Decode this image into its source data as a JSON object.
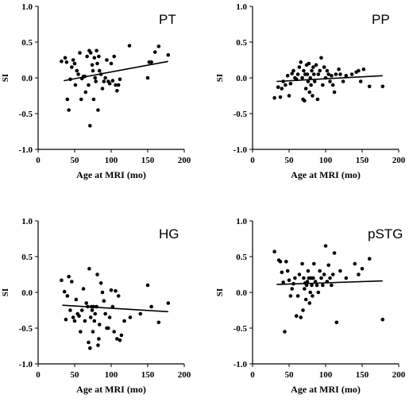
{
  "chart_data": [
    {
      "type": "scatter",
      "title": "PT",
      "xlabel": "Age at MRI (mo)",
      "ylabel": "SI",
      "xlim": [
        0,
        200
      ],
      "ylim": [
        -1.0,
        1.0
      ],
      "xticks": [
        "0",
        "50",
        "100",
        "150",
        "200"
      ],
      "yticks": [
        "1.0",
        "0.5",
        "0.0",
        "-0.5",
        "-1.0"
      ],
      "trend": {
        "x": [
          35,
          178
        ],
        "y": [
          -0.04,
          0.23
        ]
      },
      "points": [
        [
          32,
          0.23
        ],
        [
          37,
          0.28
        ],
        [
          39,
          0.22
        ],
        [
          40,
          -0.3
        ],
        [
          42,
          -0.45
        ],
        [
          44,
          -0.02
        ],
        [
          46,
          0.15
        ],
        [
          48,
          0.25
        ],
        [
          50,
          0.2
        ],
        [
          51,
          -0.1
        ],
        [
          53,
          0.1
        ],
        [
          55,
          0.05
        ],
        [
          57,
          0.35
        ],
        [
          59,
          -0.3
        ],
        [
          60,
          -0.01
        ],
        [
          62,
          0.02
        ],
        [
          64,
          0.02
        ],
        [
          65,
          -0.2
        ],
        [
          67,
          0.3
        ],
        [
          69,
          -0.1
        ],
        [
          70,
          0.38
        ],
        [
          71,
          -0.67
        ],
        [
          72,
          0.35
        ],
        [
          74,
          0.18
        ],
        [
          75,
          0.1
        ],
        [
          76,
          -0.3
        ],
        [
          77,
          0.28
        ],
        [
          78,
          0.0
        ],
        [
          79,
          -0.05
        ],
        [
          80,
          0.38
        ],
        [
          81,
          0.2
        ],
        [
          82,
          -0.45
        ],
        [
          83,
          0.3
        ],
        [
          84,
          0.1
        ],
        [
          86,
          0.05
        ],
        [
          88,
          -0.15
        ],
        [
          90,
          -0.05
        ],
        [
          92,
          0.0
        ],
        [
          94,
          0.25
        ],
        [
          96,
          -0.05
        ],
        [
          98,
          -0.08
        ],
        [
          100,
          0.2
        ],
        [
          102,
          -0.04
        ],
        [
          104,
          0.3
        ],
        [
          106,
          -0.1
        ],
        [
          108,
          -0.18
        ],
        [
          110,
          -0.1
        ],
        [
          112,
          -0.02
        ],
        [
          125,
          0.45
        ],
        [
          150,
          0.0
        ],
        [
          152,
          0.22
        ],
        [
          155,
          0.22
        ],
        [
          160,
          0.36
        ],
        [
          165,
          0.44
        ],
        [
          178,
          0.32
        ]
      ]
    },
    {
      "type": "scatter",
      "title": "PP",
      "xlabel": "Age at MRI (mo)",
      "ylabel": "SI",
      "xlim": [
        0,
        200
      ],
      "ylim": [
        -1.0,
        1.0
      ],
      "xticks": [
        "0",
        "50",
        "100",
        "150",
        "200"
      ],
      "yticks": [
        "1.0",
        "0.5",
        "0.0",
        "-0.5",
        "-1.0"
      ],
      "trend": {
        "x": [
          33,
          178
        ],
        "y": [
          -0.05,
          0.03
        ]
      },
      "points": [
        [
          30,
          -0.28
        ],
        [
          35,
          -0.13
        ],
        [
          38,
          -0.27
        ],
        [
          40,
          -0.15
        ],
        [
          42,
          -0.05
        ],
        [
          45,
          -0.1
        ],
        [
          48,
          0.03
        ],
        [
          50,
          -0.25
        ],
        [
          52,
          -0.08
        ],
        [
          54,
          0.06
        ],
        [
          56,
          0.1
        ],
        [
          58,
          0.0
        ],
        [
          60,
          -0.02
        ],
        [
          62,
          0.05
        ],
        [
          64,
          0.15
        ],
        [
          66,
          0.22
        ],
        [
          68,
          0.0
        ],
        [
          69,
          -0.3
        ],
        [
          70,
          0.1
        ],
        [
          71,
          -0.32
        ],
        [
          72,
          0.05
        ],
        [
          73,
          -0.15
        ],
        [
          74,
          0.18
        ],
        [
          75,
          0.05
        ],
        [
          76,
          -0.05
        ],
        [
          77,
          0.2
        ],
        [
          78,
          -0.2
        ],
        [
          79,
          0.0
        ],
        [
          80,
          -0.1
        ],
        [
          81,
          0.1
        ],
        [
          82,
          -0.25
        ],
        [
          83,
          0.15
        ],
        [
          84,
          0.05
        ],
        [
          85,
          -0.05
        ],
        [
          87,
          0.18
        ],
        [
          89,
          -0.3
        ],
        [
          90,
          0.05
        ],
        [
          92,
          0.1
        ],
        [
          94,
          0.28
        ],
        [
          96,
          -0.1
        ],
        [
          98,
          0.15
        ],
        [
          100,
          0.0
        ],
        [
          102,
          0.1
        ],
        [
          104,
          0.05
        ],
        [
          106,
          -0.05
        ],
        [
          108,
          0.03
        ],
        [
          110,
          -0.1
        ],
        [
          112,
          -0.2
        ],
        [
          114,
          0.05
        ],
        [
          118,
          0.12
        ],
        [
          120,
          0.05
        ],
        [
          124,
          -0.05
        ],
        [
          128,
          0.03
        ],
        [
          136,
          0.05
        ],
        [
          142,
          0.08
        ],
        [
          145,
          0.1
        ],
        [
          148,
          -0.05
        ],
        [
          152,
          0.12
        ],
        [
          160,
          -0.12
        ],
        [
          178,
          -0.12
        ]
      ]
    },
    {
      "type": "scatter",
      "title": "HG",
      "xlabel": "Age at MRI (mo)",
      "ylabel": "SI",
      "xlim": [
        0,
        200
      ],
      "ylim": [
        -1.0,
        1.0
      ],
      "xticks": [
        "0",
        "50",
        "100",
        "150",
        "200"
      ],
      "yticks": [
        "1.0",
        "0.5",
        "0.0",
        "-0.5",
        "-1.0"
      ],
      "trend": {
        "x": [
          33,
          178
        ],
        "y": [
          -0.18,
          -0.27
        ]
      },
      "points": [
        [
          32,
          0.17
        ],
        [
          36,
          0.01
        ],
        [
          38,
          -0.38
        ],
        [
          40,
          -0.05
        ],
        [
          42,
          0.22
        ],
        [
          44,
          -0.25
        ],
        [
          46,
          0.15
        ],
        [
          48,
          -0.35
        ],
        [
          50,
          -0.4
        ],
        [
          52,
          -0.1
        ],
        [
          54,
          -0.3
        ],
        [
          56,
          -0.33
        ],
        [
          58,
          -0.55
        ],
        [
          60,
          -0.25
        ],
        [
          62,
          0.05
        ],
        [
          64,
          -0.4
        ],
        [
          66,
          -0.15
        ],
        [
          68,
          -0.2
        ],
        [
          69,
          -0.7
        ],
        [
          70,
          0.33
        ],
        [
          71,
          -0.78
        ],
        [
          72,
          -0.35
        ],
        [
          73,
          -0.2
        ],
        [
          74,
          -0.25
        ],
        [
          75,
          -0.55
        ],
        [
          76,
          -0.2
        ],
        [
          77,
          -0.4
        ],
        [
          78,
          -0.3
        ],
        [
          80,
          -0.2
        ],
        [
          81,
          0.25
        ],
        [
          82,
          -0.74
        ],
        [
          83,
          -0.65
        ],
        [
          84,
          -0.45
        ],
        [
          86,
          0.13
        ],
        [
          88,
          0.0
        ],
        [
          90,
          -0.12
        ],
        [
          92,
          -0.3
        ],
        [
          94,
          -0.5
        ],
        [
          96,
          -0.5
        ],
        [
          98,
          -0.35
        ],
        [
          100,
          0.03
        ],
        [
          102,
          -0.2
        ],
        [
          104,
          -0.55
        ],
        [
          106,
          0.02
        ],
        [
          108,
          -0.65
        ],
        [
          110,
          -0.05
        ],
        [
          112,
          -0.67
        ],
        [
          114,
          -0.6
        ],
        [
          118,
          -0.4
        ],
        [
          126,
          -0.35
        ],
        [
          140,
          -0.3
        ],
        [
          150,
          0.1
        ],
        [
          155,
          -0.2
        ],
        [
          165,
          -0.42
        ],
        [
          178,
          -0.15
        ]
      ]
    },
    {
      "type": "scatter",
      "title": "pSTG",
      "xlabel": "Age at MRI (mo)",
      "ylabel": "SI",
      "xlim": [
        0,
        200
      ],
      "ylim": [
        -1.0,
        1.0
      ],
      "xticks": [
        "0",
        "50",
        "100",
        "150",
        "200"
      ],
      "yticks": [
        "1.0",
        "0.5",
        "0.0",
        "-0.5",
        "-1.0"
      ],
      "trend": {
        "x": [
          33,
          178
        ],
        "y": [
          0.11,
          0.16
        ]
      },
      "points": [
        [
          30,
          0.57
        ],
        [
          36,
          0.45
        ],
        [
          38,
          0.43
        ],
        [
          40,
          0.28
        ],
        [
          42,
          0.14
        ],
        [
          44,
          -0.55
        ],
        [
          46,
          0.43
        ],
        [
          48,
          0.3
        ],
        [
          50,
          0.17
        ],
        [
          52,
          -0.05
        ],
        [
          54,
          0.05
        ],
        [
          56,
          0.12
        ],
        [
          58,
          0.2
        ],
        [
          60,
          -0.33
        ],
        [
          62,
          -0.05
        ],
        [
          64,
          0.25
        ],
        [
          66,
          -0.35
        ],
        [
          68,
          0.4
        ],
        [
          69,
          -0.25
        ],
        [
          70,
          0.2
        ],
        [
          71,
          0.05
        ],
        [
          72,
          0.13
        ],
        [
          73,
          -0.1
        ],
        [
          74,
          0.1
        ],
        [
          75,
          0.15
        ],
        [
          76,
          0.3
        ],
        [
          77,
          0.2
        ],
        [
          78,
          -0.15
        ],
        [
          79,
          0.0
        ],
        [
          80,
          0.2
        ],
        [
          81,
          0.1
        ],
        [
          82,
          -0.05
        ],
        [
          83,
          0.2
        ],
        [
          84,
          0.4
        ],
        [
          86,
          0.15
        ],
        [
          88,
          0.1
        ],
        [
          90,
          0.0
        ],
        [
          92,
          0.3
        ],
        [
          94,
          0.2
        ],
        [
          96,
          0.1
        ],
        [
          98,
          0.25
        ],
        [
          100,
          0.65
        ],
        [
          102,
          0.15
        ],
        [
          104,
          0.38
        ],
        [
          106,
          0.2
        ],
        [
          108,
          0.1
        ],
        [
          110,
          0.25
        ],
        [
          112,
          0.55
        ],
        [
          115,
          -0.42
        ],
        [
          120,
          0.3
        ],
        [
          128,
          0.2
        ],
        [
          140,
          0.4
        ],
        [
          145,
          0.25
        ],
        [
          150,
          0.33
        ],
        [
          160,
          0.47
        ],
        [
          178,
          -0.38
        ]
      ]
    }
  ]
}
